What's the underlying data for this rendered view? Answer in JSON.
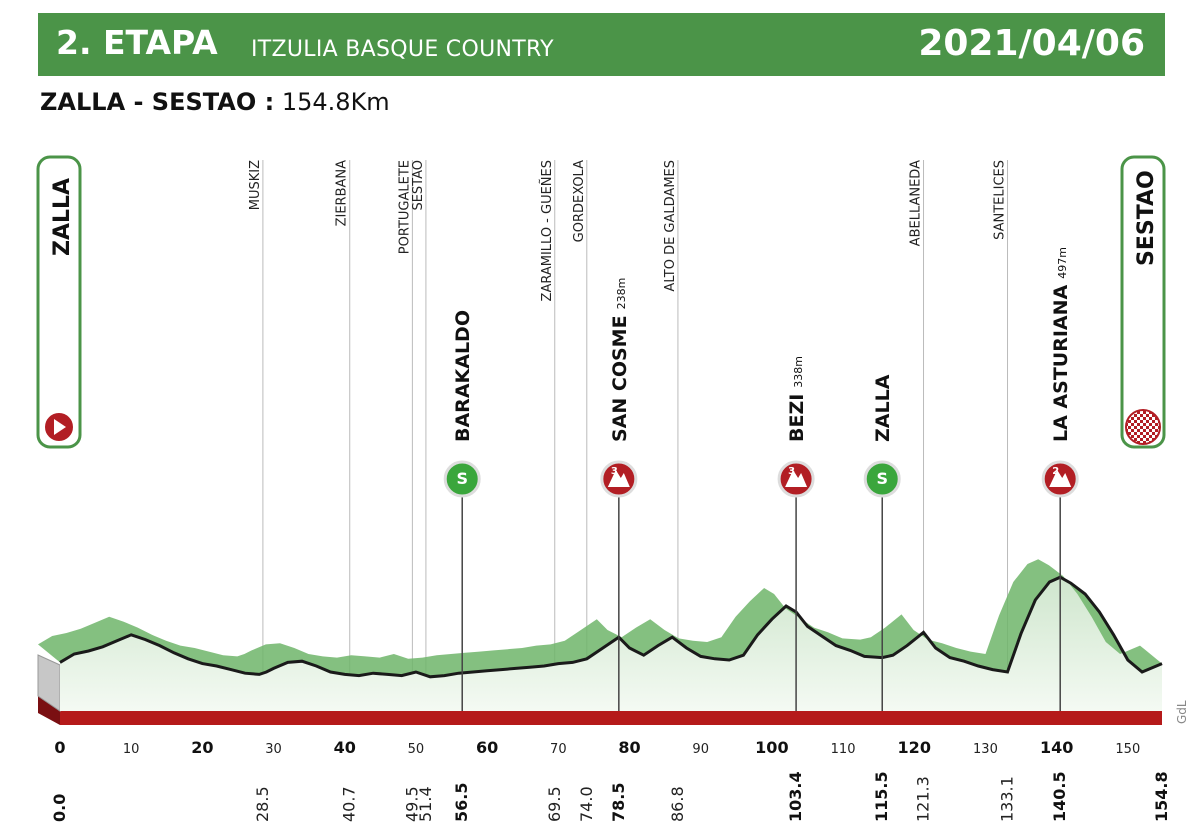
{
  "header": {
    "stage": "2. ETAPA",
    "race": "ITZULIA BASQUE COUNTRY",
    "date": "2021/04/06"
  },
  "route": {
    "start_finish": "ZALLA - SESTAO :",
    "distance": "154.8Km"
  },
  "start_town": "ZALLA",
  "finish_town": "SESTAO",
  "credit": "GdL",
  "chart_data": {
    "type": "area",
    "xlim": [
      0,
      154.8
    ],
    "x_ticks": [
      0,
      10,
      20,
      30,
      40,
      50,
      60,
      70,
      80,
      90,
      100,
      110,
      120,
      130,
      140,
      150
    ],
    "bold_x_ticks": [
      0,
      20,
      40,
      60,
      80,
      100,
      120,
      140
    ],
    "profile": {
      "x": [
        0,
        2,
        4,
        6,
        8,
        10,
        12,
        14,
        16,
        18,
        20,
        22,
        24,
        26,
        28,
        29,
        30,
        32,
        34,
        36,
        38,
        40,
        42,
        44,
        46,
        48,
        50,
        52,
        54,
        56,
        58,
        60,
        62,
        64,
        66,
        68,
        70,
        72,
        74,
        76,
        78.5,
        80,
        82,
        84,
        86,
        88,
        90,
        92,
        94,
        96,
        98,
        100,
        102,
        103.4,
        105,
        107,
        109,
        111,
        113,
        115.5,
        117,
        119,
        121.3,
        123,
        125,
        127,
        129,
        131,
        133.1,
        135,
        137,
        139,
        140.5,
        142,
        144,
        146,
        148,
        150,
        152,
        154.8
      ],
      "y": [
        46,
        60,
        65,
        72,
        82,
        92,
        84,
        74,
        62,
        52,
        44,
        40,
        34,
        28,
        26,
        30,
        36,
        46,
        48,
        40,
        30,
        26,
        24,
        28,
        26,
        24,
        30,
        22,
        24,
        28,
        30,
        32,
        34,
        36,
        38,
        40,
        44,
        46,
        52,
        68,
        88,
        70,
        58,
        74,
        88,
        70,
        56,
        52,
        50,
        58,
        92,
        118,
        140,
        130,
        106,
        90,
        74,
        66,
        56,
        54,
        58,
        74,
        96,
        70,
        54,
        48,
        40,
        34,
        30,
        94,
        150,
        180,
        188,
        178,
        160,
        130,
        92,
        50,
        30,
        44
      ]
    },
    "climbs": [
      {
        "name": "SAN COSME",
        "alt": "238m",
        "km": 78.5,
        "cat": "3"
      },
      {
        "name": "BEZI",
        "alt": "338m",
        "km": 103.4,
        "cat": "3"
      },
      {
        "name": "LA ASTURIANA",
        "alt": "497m",
        "km": 140.5,
        "cat": "2"
      }
    ],
    "sprints": [
      {
        "name": "BARAKALDO",
        "km": 56.5,
        "badge": "S"
      },
      {
        "name": "ZALLA",
        "km": 115.5,
        "badge": "S"
      }
    ],
    "places": [
      {
        "name": "MUSKIZ",
        "km": 28.5
      },
      {
        "name": "ZIERBANA",
        "km": 40.7
      },
      {
        "name": "PORTUGALETE",
        "km": 49.5
      },
      {
        "name": "SESTAO",
        "km": 51.4
      },
      {
        "name": "ZARAMILLO - GUEÑES",
        "km": 69.5
      },
      {
        "name": "GORDEXOLA",
        "km": 74.0
      },
      {
        "name": "ALTO DE GALDAMES",
        "km": 86.8
      },
      {
        "name": "ABELLANEDA",
        "km": 121.3
      },
      {
        "name": "SANTELICES",
        "km": 133.1
      }
    ],
    "km_marks": [
      "0.0",
      "28.5",
      "40.7",
      "49.5",
      "51.4",
      "56.5",
      "69.5",
      "74.0",
      "78.5",
      "86.8",
      "103.4",
      "115.5",
      "121.3",
      "133.1",
      "140.5",
      "154.8"
    ],
    "km_values": [
      0.0,
      28.5,
      40.7,
      49.5,
      51.4,
      56.5,
      69.5,
      74.0,
      78.5,
      86.8,
      103.4,
      115.5,
      121.3,
      133.1,
      140.5,
      154.8
    ],
    "bold_km_marks": [
      "0.0",
      "56.5",
      "78.5",
      "103.4",
      "115.5",
      "140.5",
      "154.8"
    ],
    "colors": {
      "banner": "#4b9448",
      "road": "#b51a1a",
      "climb_badge": "#b21e24",
      "sprint_badge": "#3aa63c"
    }
  }
}
